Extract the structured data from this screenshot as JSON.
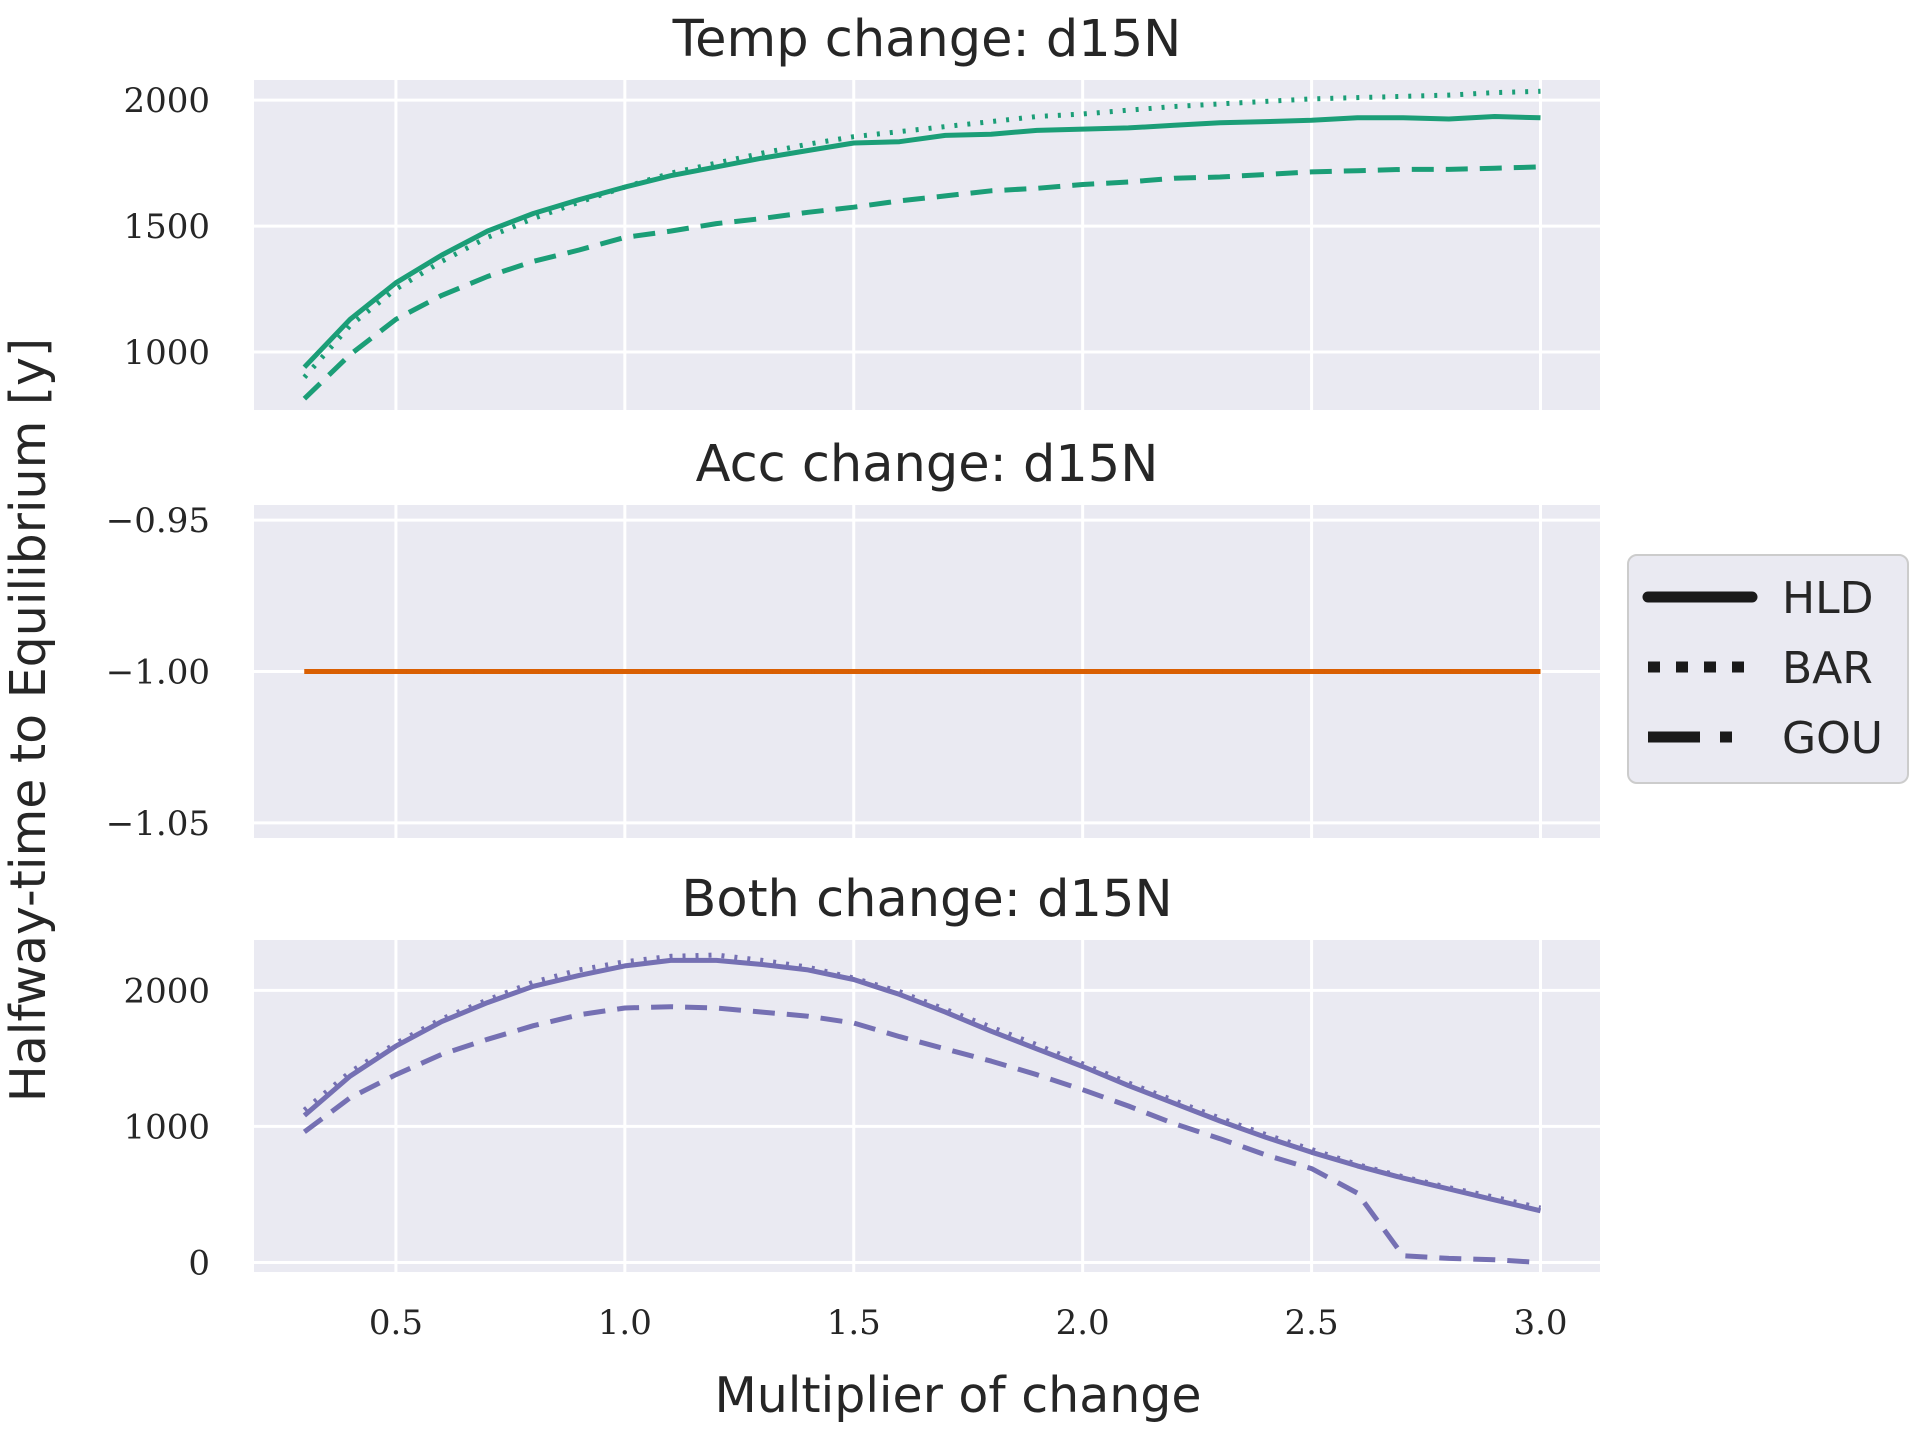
{
  "chart_data": {
    "type": "line",
    "xlabel": "Multiplier of change",
    "ylabel": "Halfway-time to Equilibrium [y]",
    "legend": {
      "position": "right",
      "entries": [
        {
          "label": "HLD",
          "style": "solid"
        },
        {
          "label": "BAR",
          "style": "dotted"
        },
        {
          "label": "GOU",
          "style": "dashed"
        }
      ]
    },
    "grid": true,
    "background": "#eaeaf2",
    "x_ticks": [
      "0.5",
      "1.0",
      "1.5",
      "2.0",
      "2.5",
      "3.0"
    ],
    "panels": [
      {
        "title": "Temp change: d15N",
        "color": "#1b9e77",
        "xlim": [
          0.19,
          3.13
        ],
        "ylim": [
          770,
          2080
        ],
        "y_ticks": [
          "1000",
          "1500",
          "2000"
        ],
        "x": [
          0.3,
          0.4,
          0.5,
          0.6,
          0.7,
          0.8,
          0.9,
          1.0,
          1.1,
          1.2,
          1.3,
          1.4,
          1.5,
          1.6,
          1.7,
          1.8,
          1.9,
          2.0,
          2.1,
          2.2,
          2.3,
          2.4,
          2.5,
          2.6,
          2.7,
          2.8,
          2.9,
          3.0
        ],
        "series": [
          {
            "name": "HLD",
            "style": "solid",
            "values": [
              940,
              1130,
              1275,
              1385,
              1480,
              1550,
              1605,
              1655,
              1700,
              1735,
              1770,
              1800,
              1830,
              1835,
              1860,
              1865,
              1880,
              1885,
              1890,
              1900,
              1910,
              1915,
              1920,
              1930,
              1930,
              1925,
              1935,
              1930
            ]
          },
          {
            "name": "BAR",
            "style": "dotted",
            "values": [
              900,
              1105,
              1250,
              1360,
              1455,
              1530,
              1595,
              1655,
              1710,
              1750,
              1790,
              1825,
              1855,
              1875,
              1895,
              1915,
              1935,
              1945,
              1960,
              1975,
              1985,
              1995,
              2005,
              2010,
              2015,
              2020,
              2030,
              2035
            ]
          },
          {
            "name": "GOU",
            "style": "dashed",
            "values": [
              815,
              990,
              1130,
              1225,
              1300,
              1360,
              1405,
              1455,
              1480,
              1510,
              1530,
              1555,
              1575,
              1600,
              1620,
              1640,
              1650,
              1665,
              1675,
              1690,
              1695,
              1705,
              1715,
              1720,
              1725,
              1725,
              1730,
              1735
            ]
          }
        ]
      },
      {
        "title": "Acc change: d15N",
        "color": "#d95f02",
        "xlim": [
          0.19,
          3.13
        ],
        "ylim": [
          -1.055,
          -0.945
        ],
        "y_ticks": [
          "−0.95",
          "−1.00",
          "−1.05"
        ],
        "x": [
          0.3,
          3.0
        ],
        "series": [
          {
            "name": "HLD",
            "style": "solid",
            "values": [
              -1.0,
              -1.0
            ]
          },
          {
            "name": "BAR",
            "style": "dotted",
            "values": [
              -1.0,
              -1.0
            ]
          },
          {
            "name": "GOU",
            "style": "dashed",
            "values": [
              -1.0,
              -1.0
            ]
          }
        ]
      },
      {
        "title": "Both change: d15N",
        "color": "#7570b3",
        "xlim": [
          0.19,
          3.13
        ],
        "ylim": [
          -70,
          2370
        ],
        "y_ticks": [
          "0",
          "1000",
          "2000"
        ],
        "x": [
          0.3,
          0.4,
          0.5,
          0.6,
          0.7,
          0.8,
          0.9,
          1.0,
          1.1,
          1.2,
          1.3,
          1.4,
          1.5,
          1.6,
          1.7,
          1.8,
          1.9,
          2.0,
          2.1,
          2.2,
          2.3,
          2.4,
          2.5,
          2.6,
          2.7,
          2.8,
          2.9,
          3.0
        ],
        "series": [
          {
            "name": "HLD",
            "style": "solid",
            "values": [
              1080,
              1370,
              1590,
              1770,
              1910,
              2030,
              2110,
              2180,
              2220,
              2220,
              2190,
              2150,
              2080,
              1970,
              1840,
              1700,
              1570,
              1440,
              1300,
              1170,
              1040,
              920,
              810,
              710,
              620,
              540,
              460,
              380
            ]
          },
          {
            "name": "BAR",
            "style": "dotted",
            "values": [
              1120,
              1400,
              1610,
              1790,
              1930,
              2060,
              2150,
              2210,
              2250,
              2260,
              2220,
              2170,
              2090,
              1990,
              1860,
              1730,
              1600,
              1460,
              1320,
              1190,
              1060,
              940,
              830,
              720,
              630,
              550,
              480,
              400
            ]
          },
          {
            "name": "GOU",
            "style": "dashed",
            "values": [
              960,
              1210,
              1380,
              1530,
              1640,
              1740,
              1820,
              1870,
              1880,
              1870,
              1840,
              1810,
              1760,
              1660,
              1570,
              1480,
              1380,
              1270,
              1150,
              1020,
              910,
              790,
              690,
              510,
              50,
              30,
              20,
              0
            ]
          }
        ]
      }
    ]
  }
}
